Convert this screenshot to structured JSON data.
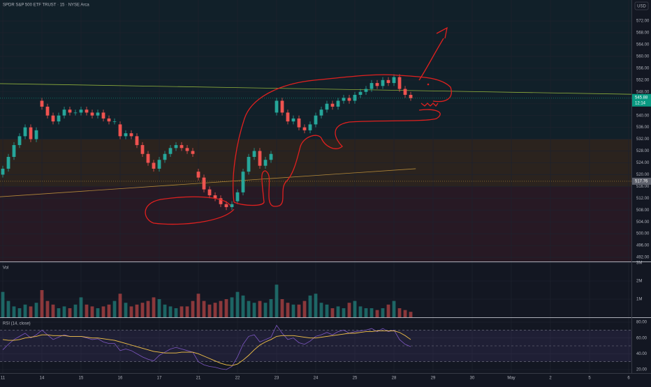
{
  "chart_data": {
    "type": "candlestick",
    "title": "SPDR S&P 500 ETF TRUST · 15 · NYSE Arca",
    "currency": "USD",
    "xlim": [
      -0.5,
      112.5
    ],
    "xticks": [
      {
        "value": 0,
        "label": "11"
      },
      {
        "value": 7,
        "label": "14"
      },
      {
        "value": 14,
        "label": "15"
      },
      {
        "value": 21,
        "label": "16"
      },
      {
        "value": 28,
        "label": "17"
      },
      {
        "value": 35,
        "label": "21"
      },
      {
        "value": 42,
        "label": "22"
      },
      {
        "value": 49,
        "label": "23"
      },
      {
        "value": 56,
        "label": "24"
      },
      {
        "value": 63,
        "label": "25"
      },
      {
        "value": 70,
        "label": "28"
      },
      {
        "value": 77,
        "label": "29"
      },
      {
        "value": 84,
        "label": "30"
      },
      {
        "value": 91,
        "label": "May"
      },
      {
        "value": 98,
        "label": "2"
      },
      {
        "value": 105,
        "label": "5"
      },
      {
        "value": 112,
        "label": "6"
      }
    ],
    "ylim": [
      490.6,
      579.1
    ],
    "yticks": [
      {
        "value": 492,
        "label": "492.00"
      },
      {
        "value": 496,
        "label": "496.00"
      },
      {
        "value": 500,
        "label": "500.00"
      },
      {
        "value": 504,
        "label": "504.00"
      },
      {
        "value": 508,
        "label": "508.00"
      },
      {
        "value": 512,
        "label": "512.00"
      },
      {
        "value": 516,
        "label": "516.00"
      },
      {
        "value": 520,
        "label": "520.00"
      },
      {
        "value": 524,
        "label": "524.00"
      },
      {
        "value": 528,
        "label": "528.00"
      },
      {
        "value": 532,
        "label": "532.00"
      },
      {
        "value": 536,
        "label": "536.00"
      },
      {
        "value": 540,
        "label": "540.00"
      },
      {
        "value": 544,
        "label": "544.00"
      },
      {
        "value": 548,
        "label": "548.00"
      },
      {
        "value": 552,
        "label": "552.00"
      },
      {
        "value": 556,
        "label": "556.00"
      },
      {
        "value": 560,
        "label": "560.00"
      },
      {
        "value": 564,
        "label": "564.00"
      },
      {
        "value": 568,
        "label": "568.00"
      },
      {
        "value": 572,
        "label": "572.00"
      }
    ],
    "up_color": "#26a69a",
    "down_color": "#ef5350",
    "open": [
      520,
      522,
      526,
      530,
      533,
      536,
      532,
      545,
      543,
      540,
      538,
      540,
      542,
      541,
      541,
      542,
      541,
      540,
      541,
      539,
      538,
      537,
      533,
      534,
      533,
      530,
      527,
      524,
      522,
      525,
      527,
      529,
      530,
      529,
      528,
      521,
      519,
      515,
      513,
      512,
      510,
      509,
      511,
      514,
      521,
      526,
      528,
      523,
      525,
      541,
      545,
      541,
      538,
      539,
      536,
      535,
      537,
      540,
      542,
      544,
      543,
      545,
      546,
      545,
      547,
      548,
      549,
      551,
      550,
      552,
      551,
      553,
      549,
      547
    ],
    "high": [
      523,
      527,
      531,
      534,
      537,
      537,
      536,
      546,
      544,
      541,
      541,
      543,
      543,
      542,
      543,
      543,
      542,
      542,
      542,
      540,
      539,
      538,
      535,
      535,
      534,
      531,
      528,
      525,
      526,
      528,
      530,
      531,
      531,
      530,
      529,
      522,
      520,
      516,
      514,
      513,
      511,
      511,
      515,
      522,
      527,
      529,
      529,
      526,
      528,
      546,
      546,
      542,
      540,
      540,
      537,
      538,
      541,
      543,
      545,
      545,
      546,
      547,
      547,
      548,
      549,
      550,
      552,
      552,
      553,
      553,
      554,
      554,
      550,
      548
    ],
    "low": [
      519,
      521,
      525,
      529,
      532,
      531,
      531,
      542,
      539,
      537,
      537,
      539,
      540,
      540,
      540,
      540,
      539,
      539,
      538,
      537,
      537,
      532,
      532,
      532,
      529,
      526,
      523,
      521,
      521,
      524,
      526,
      528,
      528,
      527,
      526,
      518,
      514,
      512,
      511,
      509,
      508,
      508,
      510,
      513,
      520,
      525,
      522,
      522,
      524,
      540,
      540,
      537,
      537,
      535,
      534,
      534,
      536,
      539,
      541,
      542,
      542,
      544,
      544,
      544,
      546,
      547,
      548,
      549,
      549,
      550,
      550,
      548,
      546,
      545
    ],
    "close": [
      522,
      526,
      530,
      533,
      536,
      532,
      535,
      543,
      540,
      538,
      540,
      542,
      541,
      541,
      542,
      541,
      540,
      541,
      539,
      538,
      538,
      533,
      534,
      533,
      530,
      527,
      524,
      522,
      525,
      527,
      529,
      530,
      529,
      528,
      527,
      519,
      515,
      513,
      512,
      510,
      509,
      510,
      514,
      521,
      526,
      528,
      523,
      525,
      527,
      545,
      541,
      538,
      539,
      536,
      535,
      537,
      540,
      542,
      544,
      543,
      545,
      546,
      545,
      547,
      548,
      549,
      551,
      550,
      552,
      551,
      553,
      549,
      547,
      545.88
    ],
    "zones": [
      {
        "from": 532,
        "to": 579.1,
        "color": "rgba(0,150,136,0.07)"
      },
      {
        "from": 516,
        "to": 532,
        "color": "rgba(255,152,0,0.10)"
      },
      {
        "from": 490.6,
        "to": 516,
        "color": "rgba(242,54,69,0.09)"
      }
    ],
    "overlays": [
      {
        "color": "#8fae3c",
        "x": [
          -0.5,
          112.5
        ],
        "values": [
          550.8,
          547.2
        ]
      },
      {
        "color": "#b3893a",
        "x": [
          -0.5,
          73.9
        ],
        "values": [
          512.5,
          522
        ]
      }
    ],
    "last_price": 545.88,
    "last_color": "#089981",
    "countdown": "12:14",
    "ref_price": 517.76,
    "volume": {
      "title": "Vol",
      "ylim": [
        0,
        3040000
      ],
      "yticks": [
        {
          "value": 1000000,
          "label": "1M"
        },
        {
          "value": 2000000,
          "label": "2M"
        },
        {
          "value": 3000000,
          "label": "3M"
        }
      ],
      "values": [
        1400000,
        900000,
        600000,
        500000,
        700000,
        600000,
        800000,
        1500000,
        900000,
        700000,
        500000,
        600000,
        500000,
        700000,
        1100000,
        700000,
        600000,
        500000,
        600000,
        700000,
        900000,
        1300000,
        800000,
        600000,
        700000,
        800000,
        900000,
        1100000,
        1000000,
        700000,
        600000,
        500000,
        600000,
        600000,
        900000,
        1300000,
        900000,
        700000,
        800000,
        900000,
        1000000,
        1100000,
        1400000,
        1200000,
        900000,
        800000,
        900000,
        800000,
        1000000,
        1800000,
        1000000,
        800000,
        700000,
        700000,
        900000,
        1200000,
        1300000,
        800000,
        700000,
        500000,
        600000,
        500000,
        800000,
        900000,
        600000,
        500000,
        500000,
        400000,
        500000,
        700000,
        900000,
        500000,
        400000,
        300000
      ]
    },
    "rsi": {
      "title": "RSI (14, close)",
      "color": "#7e57c2",
      "ma_color": "#f7c548",
      "ylim": [
        15.6,
        85.3
      ],
      "levels": [
        70,
        50,
        30
      ],
      "yticks": [
        {
          "value": 20,
          "label": "20.00"
        },
        {
          "value": 40,
          "label": "40.00"
        },
        {
          "value": 60,
          "label": "60.00"
        },
        {
          "value": 80,
          "label": "80.00"
        }
      ],
      "values": [
        45,
        52,
        58,
        62,
        66,
        60,
        64,
        70,
        64,
        58,
        61,
        64,
        62,
        62,
        62,
        60,
        58,
        59,
        55,
        53,
        53,
        44,
        46,
        44,
        40,
        36,
        33,
        31,
        38,
        42,
        46,
        48,
        46,
        44,
        42,
        30,
        26,
        24,
        23,
        21,
        20,
        24,
        36,
        52,
        62,
        64,
        55,
        58,
        61,
        76,
        66,
        58,
        60,
        54,
        52,
        56,
        62,
        64,
        67,
        64,
        68,
        70,
        66,
        68,
        69,
        70,
        72,
        68,
        72,
        68,
        70,
        58,
        52,
        49
      ],
      "ma_values": [
        58,
        57,
        57,
        58,
        60,
        61,
        62,
        64,
        64,
        63,
        63,
        63,
        62,
        62,
        62,
        61,
        60,
        60,
        59,
        58,
        57,
        55,
        53,
        51,
        49,
        47,
        45,
        43,
        42,
        41,
        41,
        41,
        42,
        42,
        42,
        40,
        37,
        34,
        31,
        28,
        26,
        25,
        27,
        32,
        38,
        45,
        51,
        55,
        58,
        62,
        63,
        63,
        63,
        62,
        61,
        60,
        60,
        61,
        62,
        63,
        64,
        65,
        66,
        66,
        67,
        68,
        68,
        69,
        69,
        69,
        69,
        67,
        63,
        58
      ]
    }
  }
}
